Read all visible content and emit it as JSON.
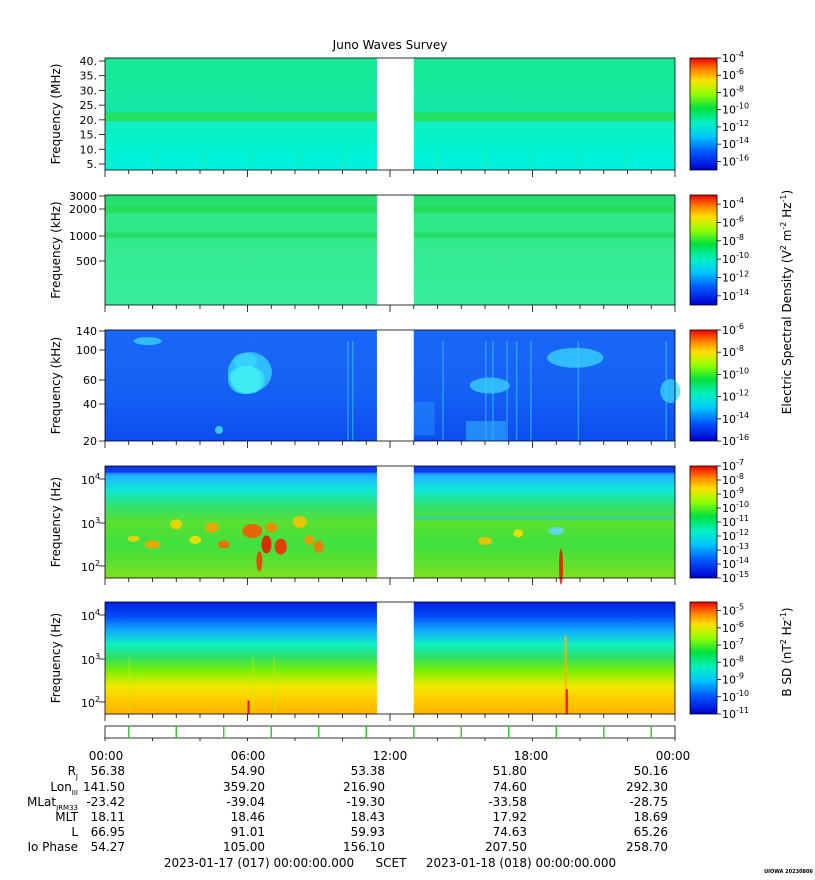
{
  "title": "Juno Waves Survey",
  "footer": {
    "start": "2023-01-17 (017) 00:00:00.000",
    "scet": "SCET",
    "end": "2023-01-18 (018) 00:00:00.000",
    "tag": "UIOWA 20230806"
  },
  "colors": {
    "spectrum_low": "#0000cc",
    "spectrum_mid": "#00e060",
    "spectrum_high": "#ee0000",
    "gap": "#ffffff",
    "marker_tick": "#33cc33"
  },
  "chart_data": [
    {
      "type": "heatmap",
      "ylabel": "Frequency (MHz)",
      "y_ticks": [
        "40.",
        "35.",
        "30.",
        "25.",
        "20.",
        "15.",
        "10.",
        "5."
      ],
      "ylim": [
        3.5,
        41
      ],
      "data_gap_hours": [
        11.45,
        13.0
      ],
      "colorbar_ticks": [
        {
          "base": "10",
          "exp": "-4"
        },
        {
          "base": "10",
          "exp": "-6"
        },
        {
          "base": "10",
          "exp": "-8"
        },
        {
          "base": "10",
          "exp": "-10"
        },
        {
          "base": "10",
          "exp": "-12"
        },
        {
          "base": "10",
          "exp": "-14"
        },
        {
          "base": "10",
          "exp": "-16"
        }
      ],
      "colorbar_range": [
        -17,
        -4
      ]
    },
    {
      "type": "heatmap",
      "ylabel": "Frequency (kHz)",
      "y_ticks": [
        "3000",
        "2000",
        "1000",
        "500"
      ],
      "yscale": "log",
      "data_gap_hours": [
        11.45,
        13.0
      ],
      "colorbar_ticks": [
        {
          "base": "10",
          "exp": "-4"
        },
        {
          "base": "10",
          "exp": "-6"
        },
        {
          "base": "10",
          "exp": "-8"
        },
        {
          "base": "10",
          "exp": "-10"
        },
        {
          "base": "10",
          "exp": "-12"
        },
        {
          "base": "10",
          "exp": "-14"
        }
      ],
      "colorbar_range": [
        -15,
        -3
      ]
    },
    {
      "type": "heatmap",
      "ylabel": "Frequency (kHz)",
      "y_ticks": [
        "140",
        "100",
        "60",
        "40",
        "20"
      ],
      "ylim": [
        20,
        140
      ],
      "data_gap_hours": [
        11.45,
        13.0
      ],
      "colorbar_ticks": [
        {
          "base": "10",
          "exp": "-6"
        },
        {
          "base": "10",
          "exp": "-8"
        },
        {
          "base": "10",
          "exp": "-10"
        },
        {
          "base": "10",
          "exp": "-12"
        },
        {
          "base": "10",
          "exp": "-14"
        },
        {
          "base": "10",
          "exp": "-16"
        }
      ],
      "colorbar_range": [
        -16,
        -6
      ],
      "colorbar_label": "Electric Spectral Density (V² m⁻² Hz⁻¹)"
    },
    {
      "type": "heatmap",
      "ylabel": "Frequency (Hz)",
      "y_ticks": [
        {
          "base": "10",
          "exp": "4"
        },
        {
          "base": "10",
          "exp": "3"
        },
        {
          "base": "10",
          "exp": "2"
        }
      ],
      "yscale": "log",
      "data_gap_hours": [
        11.45,
        13.0
      ],
      "colorbar_ticks": [
        {
          "base": "10",
          "exp": "-7"
        },
        {
          "base": "10",
          "exp": "-8"
        },
        {
          "base": "10",
          "exp": "-9"
        },
        {
          "base": "10",
          "exp": "-10"
        },
        {
          "base": "10",
          "exp": "-11"
        },
        {
          "base": "10",
          "exp": "-12"
        },
        {
          "base": "10",
          "exp": "-13"
        },
        {
          "base": "10",
          "exp": "-14"
        },
        {
          "base": "10",
          "exp": "-15"
        }
      ],
      "colorbar_range": [
        -15,
        -7
      ]
    },
    {
      "type": "heatmap",
      "ylabel": "Frequency (Hz)",
      "y_ticks": [
        {
          "base": "10",
          "exp": "4"
        },
        {
          "base": "10",
          "exp": "3"
        },
        {
          "base": "10",
          "exp": "2"
        }
      ],
      "yscale": "log",
      "data_gap_hours": [
        11.45,
        13.0
      ],
      "colorbar_ticks": [
        {
          "base": "10",
          "exp": "-5"
        },
        {
          "base": "10",
          "exp": "-6"
        },
        {
          "base": "10",
          "exp": "-7"
        },
        {
          "base": "10",
          "exp": "-8"
        },
        {
          "base": "10",
          "exp": "-9"
        },
        {
          "base": "10",
          "exp": "-10"
        },
        {
          "base": "10",
          "exp": "-11"
        }
      ],
      "colorbar_range": [
        -11,
        -4.5
      ],
      "colorbar_label": "B SD (nT² Hz⁻¹)"
    }
  ],
  "time_axis": {
    "labels": [
      "00:00",
      "06:00",
      "12:00",
      "18:00",
      "00:00"
    ],
    "marker_hours": [
      1,
      3,
      5,
      7,
      9,
      11,
      13,
      15,
      17,
      19,
      21,
      23
    ]
  },
  "ephemeris": {
    "rows": [
      {
        "label": "R",
        "sub": "J",
        "values": [
          "56.38",
          "54.90",
          "53.38",
          "51.80",
          "50.16"
        ]
      },
      {
        "label": "Lon",
        "sub": "III",
        "values": [
          "141.50",
          "359.20",
          "216.90",
          "74.60",
          "292.30"
        ]
      },
      {
        "label": "MLat",
        "sub": "JRM33",
        "values": [
          "-23.42",
          "-39.04",
          "-19.30",
          "-33.58",
          "-28.75"
        ]
      },
      {
        "label": "MLT",
        "sub": "",
        "values": [
          "18.11",
          "18.46",
          "18.43",
          "17.92",
          "18.69"
        ]
      },
      {
        "label": "L",
        "sub": "",
        "values": [
          "66.95",
          "91.01",
          "59.93",
          "74.63",
          "65.26"
        ]
      },
      {
        "label": "Io Phase",
        "sub": "",
        "values": [
          "54.27",
          "105.00",
          "156.10",
          "207.50",
          "258.70"
        ]
      }
    ]
  }
}
